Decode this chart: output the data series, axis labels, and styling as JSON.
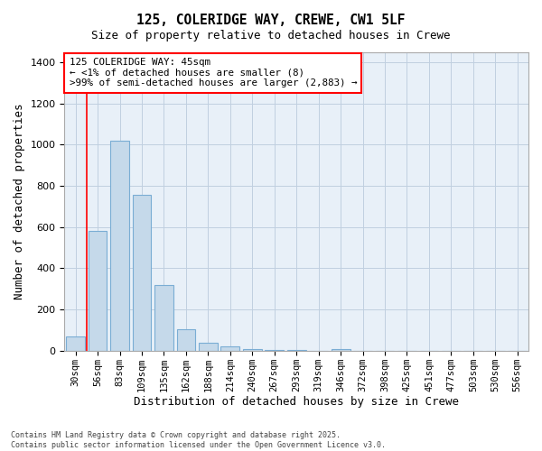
{
  "title": "125, COLERIDGE WAY, CREWE, CW1 5LF",
  "subtitle": "Size of property relative to detached houses in Crewe",
  "xlabel": "Distribution of detached houses by size in Crewe",
  "ylabel": "Number of detached properties",
  "categories": [
    "30sqm",
    "56sqm",
    "83sqm",
    "109sqm",
    "135sqm",
    "162sqm",
    "188sqm",
    "214sqm",
    "240sqm",
    "267sqm",
    "293sqm",
    "319sqm",
    "346sqm",
    "372sqm",
    "398sqm",
    "425sqm",
    "451sqm",
    "477sqm",
    "503sqm",
    "530sqm",
    "556sqm"
  ],
  "values": [
    70,
    580,
    1020,
    755,
    320,
    105,
    40,
    20,
    10,
    5,
    2,
    0,
    8,
    0,
    0,
    0,
    0,
    0,
    0,
    0,
    0
  ],
  "bar_color": "#c5d9ea",
  "bar_edge_color": "#7aadd4",
  "ylim": [
    0,
    1450
  ],
  "yticks": [
    0,
    200,
    400,
    600,
    800,
    1000,
    1200,
    1400
  ],
  "annotation_line1": "125 COLERIDGE WAY: 45sqm",
  "annotation_line2": "← <1% of detached houses are smaller (8)",
  "annotation_line3": ">99% of semi-detached houses are larger (2,883) →",
  "footnote": "Contains HM Land Registry data © Crown copyright and database right 2025.\nContains public sector information licensed under the Open Government Licence v3.0.",
  "background_color": "#ffffff",
  "plot_bg_color": "#e8f0f8",
  "grid_color": "#c0cfe0"
}
